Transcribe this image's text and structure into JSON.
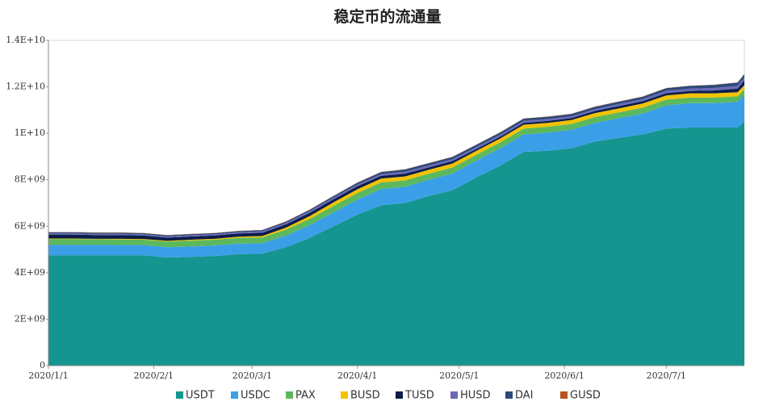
{
  "chart_data": {
    "type": "stacked-area",
    "title": "稳定币的流通量",
    "x": [
      "2020/1/1",
      "2020/1/8",
      "2020/1/15",
      "2020/1/22",
      "2020/1/29",
      "2020/2/5",
      "2020/2/12",
      "2020/2/19",
      "2020/2/26",
      "2020/3/4",
      "2020/3/11",
      "2020/3/18",
      "2020/3/25",
      "2020/4/1",
      "2020/4/8",
      "2020/4/15",
      "2020/4/22",
      "2020/4/29",
      "2020/5/6",
      "2020/5/13",
      "2020/5/20",
      "2020/5/27",
      "2020/6/3",
      "2020/6/10",
      "2020/6/17",
      "2020/6/24",
      "2020/7/1",
      "2020/7/8",
      "2020/7/15",
      "2020/7/22",
      "2020/7/24"
    ],
    "xlim": [
      "2020/1/1",
      "2020/7/24"
    ],
    "xticks": [
      "2020/1/1",
      "2020/2/1",
      "2020/3/1",
      "2020/4/1",
      "2020/5/1",
      "2020/6/1",
      "2020/7/1"
    ],
    "ylim": [
      0,
      14000000000.0
    ],
    "yticks": [
      0,
      {
        "value": 2000000000.0,
        "label": "2E+09"
      },
      {
        "value": 4000000000.0,
        "label": "4E+09"
      },
      {
        "value": 6000000000.0,
        "label": "6E+09"
      },
      {
        "value": 8000000000.0,
        "label": "8E+09"
      },
      {
        "value": 10000000000.0,
        "label": "1E+10"
      },
      {
        "value": 12000000000.0,
        "label": "1.2E+10"
      },
      {
        "value": 14000000000.0,
        "label": "1.4E+10"
      }
    ],
    "legend": "bottom",
    "series": [
      {
        "name": "USDT",
        "color": "#15958f",
        "values": [
          4750000000.0,
          4750000000.0,
          4750000000.0,
          4750000000.0,
          4750000000.0,
          4650000000.0,
          4680000000.0,
          4720000000.0,
          4800000000.0,
          4820000000.0,
          5100000000.0,
          5500000000.0,
          6000000000.0,
          6500000000.0,
          6900000000.0,
          7000000000.0,
          7300000000.0,
          7550000000.0,
          8100000000.0,
          8600000000.0,
          9200000000.0,
          9250000000.0,
          9350000000.0,
          9650000000.0,
          9800000000.0,
          9950000000.0,
          10200000000.0,
          10250000000.0,
          10250000000.0,
          10250000000.0,
          10500000000.0
        ]
      },
      {
        "name": "USDC",
        "color": "#3b9fe8",
        "values": [
          450000000.0,
          450000000.0,
          450000000.0,
          440000000.0,
          440000000.0,
          450000000.0,
          450000000.0,
          450000000.0,
          450000000.0,
          450000000.0,
          500000000.0,
          550000000.0,
          600000000.0,
          650000000.0,
          700000000.0,
          700000000.0,
          700000000.0,
          720000000.0,
          720000000.0,
          750000000.0,
          750000000.0,
          780000000.0,
          800000000.0,
          800000000.0,
          850000000.0,
          900000000.0,
          1000000000.0,
          1050000000.0,
          1050000000.0,
          1100000000.0,
          1150000000.0
        ]
      },
      {
        "name": "PAX",
        "color": "#5cb85c",
        "values": [
          250000000.0,
          250000000.0,
          240000000.0,
          240000000.0,
          230000000.0,
          240000000.0,
          250000000.0,
          250000000.0,
          250000000.0,
          250000000.0,
          260000000.0,
          270000000.0,
          280000000.0,
          280000000.0,
          280000000.0,
          270000000.0,
          260000000.0,
          260000000.0,
          250000000.0,
          250000000.0,
          250000000.0,
          250000000.0,
          250000000.0,
          250000000.0,
          250000000.0,
          250000000.0,
          250000000.0,
          240000000.0,
          240000000.0,
          240000000.0,
          240000000.0
        ]
      },
      {
        "name": "BUSD",
        "color": "#f2c200",
        "values": [
          20000000.0,
          20000000.0,
          20000000.0,
          30000000.0,
          30000000.0,
          30000000.0,
          40000000.0,
          40000000.0,
          50000000.0,
          60000000.0,
          80000000.0,
          120000000.0,
          150000000.0,
          160000000.0,
          170000000.0,
          170000000.0,
          170000000.0,
          170000000.0,
          170000000.0,
          170000000.0,
          170000000.0,
          170000000.0,
          170000000.0,
          170000000.0,
          170000000.0,
          180000000.0,
          180000000.0,
          180000000.0,
          180000000.0,
          180000000.0,
          180000000.0
        ]
      },
      {
        "name": "TUSD",
        "color": "#0b1d4a",
        "values": [
          170000000.0,
          170000000.0,
          160000000.0,
          160000000.0,
          150000000.0,
          140000000.0,
          140000000.0,
          140000000.0,
          140000000.0,
          140000000.0,
          140000000.0,
          140000000.0,
          130000000.0,
          130000000.0,
          120000000.0,
          120000000.0,
          100000000.0,
          100000000.0,
          80000000.0,
          80000000.0,
          80000000.0,
          80000000.0,
          80000000.0,
          90000000.0,
          100000000.0,
          100000000.0,
          100000000.0,
          100000000.0,
          120000000.0,
          150000000.0,
          200000000.0
        ]
      },
      {
        "name": "HUSD",
        "color": "#6a6ab8",
        "values": [
          50000000.0,
          50000000.0,
          50000000.0,
          50000000.0,
          50000000.0,
          50000000.0,
          50000000.0,
          50000000.0,
          50000000.0,
          60000000.0,
          60000000.0,
          70000000.0,
          70000000.0,
          70000000.0,
          70000000.0,
          80000000.0,
          80000000.0,
          80000000.0,
          80000000.0,
          80000000.0,
          80000000.0,
          80000000.0,
          80000000.0,
          80000000.0,
          90000000.0,
          90000000.0,
          100000000.0,
          100000000.0,
          110000000.0,
          120000000.0,
          130000000.0
        ]
      },
      {
        "name": "DAI",
        "color": "#2d4a7a",
        "values": [
          50000000.0,
          50000000.0,
          50000000.0,
          50000000.0,
          50000000.0,
          50000000.0,
          50000000.0,
          50000000.0,
          50000000.0,
          50000000.0,
          60000000.0,
          60000000.0,
          70000000.0,
          80000000.0,
          90000000.0,
          100000000.0,
          100000000.0,
          100000000.0,
          100000000.0,
          100000000.0,
          100000000.0,
          100000000.0,
          100000000.0,
          100000000.0,
          100000000.0,
          100000000.0,
          110000000.0,
          120000000.0,
          130000000.0,
          140000000.0,
          140000000.0
        ]
      },
      {
        "name": "GUSD",
        "color": "#b5541f",
        "values": [
          10000000.0,
          10000000.0,
          10000000.0,
          10000000.0,
          10000000.0,
          10000000.0,
          10000000.0,
          10000000.0,
          10000000.0,
          10000000.0,
          10000000.0,
          10000000.0,
          10000000.0,
          10000000.0,
          10000000.0,
          10000000.0,
          10000000.0,
          10000000.0,
          10000000.0,
          10000000.0,
          10000000.0,
          10000000.0,
          10000000.0,
          10000000.0,
          10000000.0,
          10000000.0,
          10000000.0,
          10000000.0,
          10000000.0,
          10000000.0,
          10000000.0
        ]
      }
    ]
  }
}
